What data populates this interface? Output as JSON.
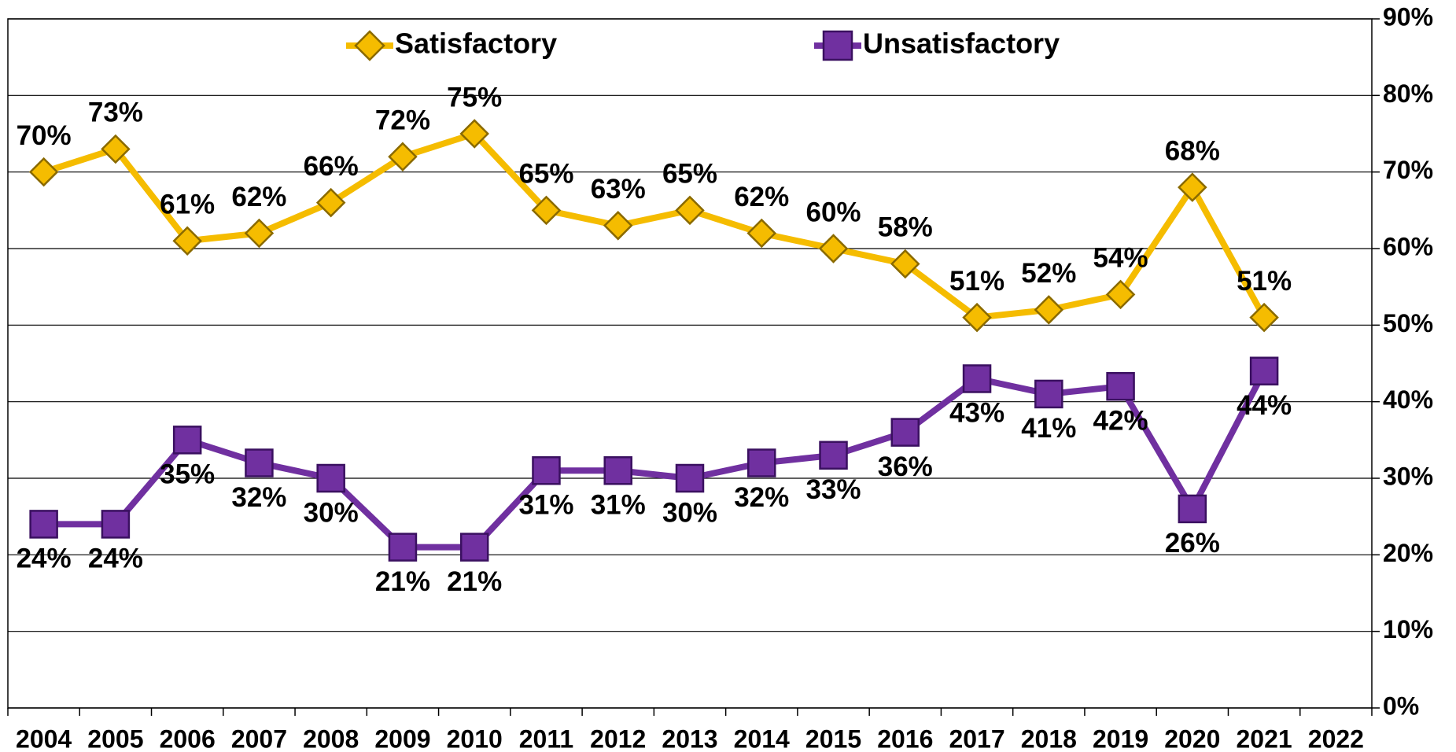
{
  "chart_data": {
    "type": "line",
    "categories": [
      "2004",
      "2005",
      "2006",
      "2007",
      "2008",
      "2009",
      "2010",
      "2011",
      "2012",
      "2013",
      "2014",
      "2015",
      "2016",
      "2017",
      "2018",
      "2019",
      "2020",
      "2021",
      "2022"
    ],
    "series": [
      {
        "name": "Satisfactory",
        "color": "#f5bc00",
        "marker": "diamond",
        "values": [
          70,
          73,
          61,
          62,
          66,
          72,
          75,
          65,
          63,
          65,
          62,
          60,
          58,
          51,
          52,
          54,
          68,
          51,
          null
        ],
        "value_labels": [
          "70%",
          "73%",
          "61%",
          "62%",
          "66%",
          "72%",
          "75%",
          "65%",
          "63%",
          "65%",
          "62%",
          "60%",
          "58%",
          "51%",
          "52%",
          "54%",
          "68%",
          "51%",
          null
        ]
      },
      {
        "name": "Unsatisfactory",
        "color": "#7030a0",
        "marker": "square",
        "values": [
          24,
          24,
          35,
          32,
          30,
          21,
          21,
          31,
          31,
          30,
          32,
          33,
          36,
          43,
          41,
          42,
          26,
          44,
          null
        ],
        "value_labels": [
          "24%",
          "24%",
          "35%",
          "32%",
          "30%",
          "21%",
          "21%",
          "31%",
          "31%",
          "30%",
          "32%",
          "33%",
          "36%",
          "43%",
          "41%",
          "42%",
          "26%",
          "44%",
          null
        ]
      }
    ],
    "ylim": [
      0,
      90
    ],
    "yticks": [
      {
        "value": 0,
        "label": "0%"
      },
      {
        "value": 10,
        "label": "10%"
      },
      {
        "value": 20,
        "label": "20%"
      },
      {
        "value": 30,
        "label": "30%"
      },
      {
        "value": 40,
        "label": "40%"
      },
      {
        "value": 50,
        "label": "50%"
      },
      {
        "value": 60,
        "label": "60%"
      },
      {
        "value": 70,
        "label": "70%"
      },
      {
        "value": 80,
        "label": "80%"
      },
      {
        "value": 90,
        "label": "90%"
      }
    ],
    "grid": true,
    "y_axis_side": "right",
    "legend": "top"
  }
}
